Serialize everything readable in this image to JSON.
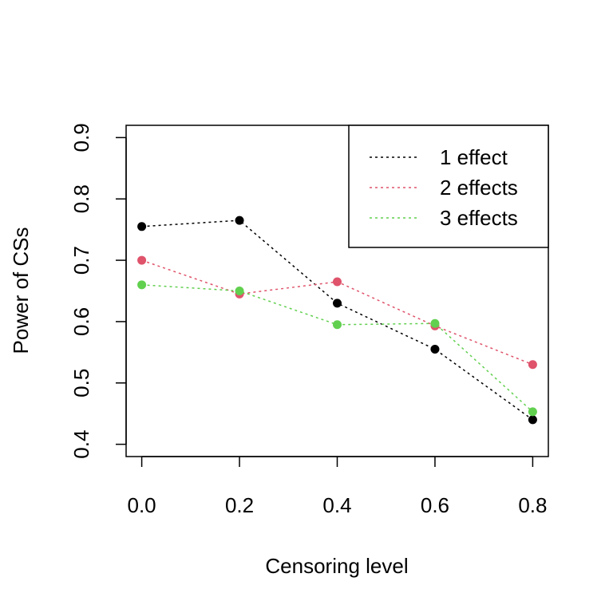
{
  "chart_data": {
    "type": "line",
    "title": "",
    "xlabel": "Censoring level",
    "ylabel": "Power of CSs",
    "x": [
      0.0,
      0.2,
      0.4,
      0.6,
      0.8
    ],
    "x_tick_labels": [
      "0.0",
      "0.2",
      "0.4",
      "0.6",
      "0.8"
    ],
    "y_tick_labels": [
      "0.4",
      "0.5",
      "0.6",
      "0.7",
      "0.8",
      "0.9"
    ],
    "xlim": [
      -0.032,
      0.832
    ],
    "ylim": [
      0.38,
      0.92
    ],
    "grid": false,
    "legend_position": "top-right",
    "series": [
      {
        "name": "1 effect",
        "color": "#000000",
        "values": [
          0.755,
          0.765,
          0.63,
          0.555,
          0.44
        ]
      },
      {
        "name": "2 effects",
        "color": "#DF536B",
        "values": [
          0.7,
          0.645,
          0.665,
          0.593,
          0.53
        ]
      },
      {
        "name": "3 effects",
        "color": "#61D04F",
        "values": [
          0.66,
          0.65,
          0.595,
          0.597,
          0.453
        ]
      }
    ]
  }
}
